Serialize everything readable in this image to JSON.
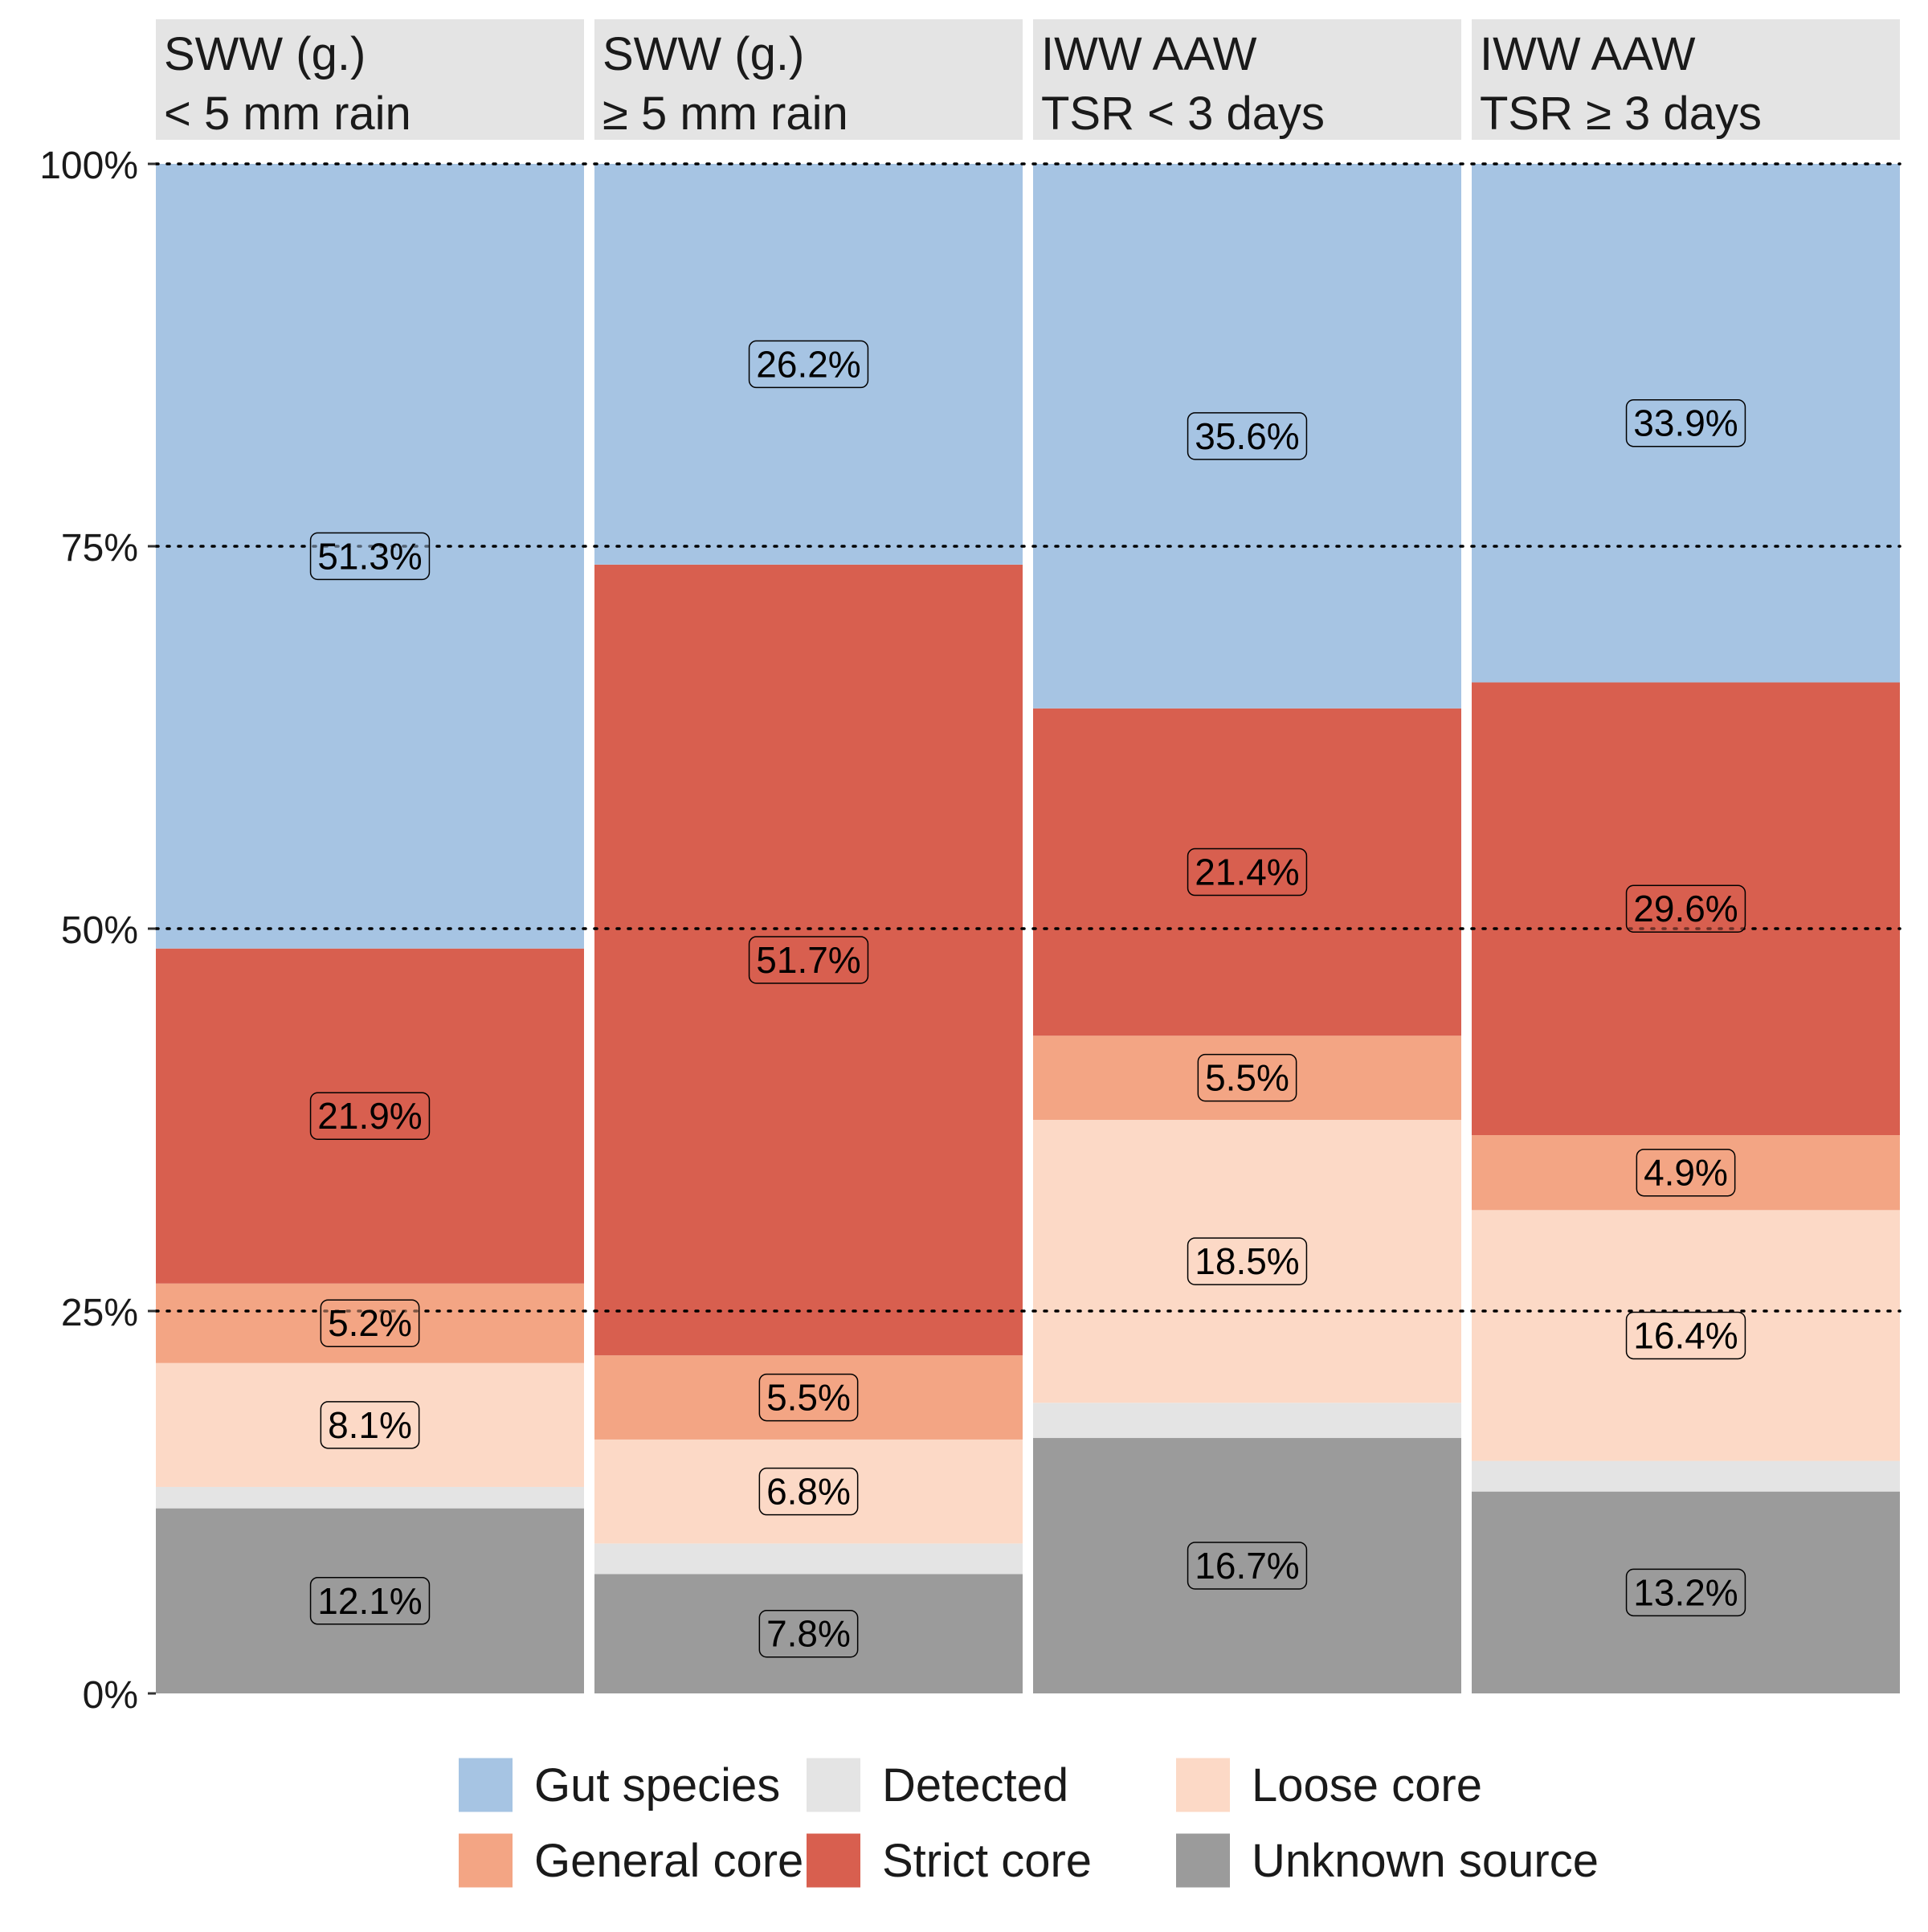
{
  "chart_data": {
    "type": "bar",
    "stacked": true,
    "facets": [
      {
        "strip_label": [
          "SWW (g.)",
          "< 5 mm rain"
        ],
        "segments": [
          {
            "series": "Unknown source",
            "value": 12.1,
            "label": "12.1%"
          },
          {
            "series": "Detected",
            "value": 1.4,
            "label": ""
          },
          {
            "series": "Loose core",
            "value": 8.1,
            "label": "8.1%"
          },
          {
            "series": "General core",
            "value": 5.2,
            "label": "5.2%"
          },
          {
            "series": "Strict core",
            "value": 21.9,
            "label": "21.9%"
          },
          {
            "series": "Gut species",
            "value": 51.3,
            "label": "51.3%"
          }
        ]
      },
      {
        "strip_label": [
          "SWW (g.)",
          "≥ 5 mm rain"
        ],
        "segments": [
          {
            "series": "Unknown source",
            "value": 7.8,
            "label": "7.8%"
          },
          {
            "series": "Detected",
            "value": 2.0,
            "label": ""
          },
          {
            "series": "Loose core",
            "value": 6.8,
            "label": "6.8%"
          },
          {
            "series": "General core",
            "value": 5.5,
            "label": "5.5%"
          },
          {
            "series": "Strict core",
            "value": 51.7,
            "label": "51.7%"
          },
          {
            "series": "Gut species",
            "value": 26.2,
            "label": "26.2%"
          }
        ]
      },
      {
        "strip_label": [
          "IWW AAW",
          "TSR < 3 days"
        ],
        "segments": [
          {
            "series": "Unknown source",
            "value": 16.7,
            "label": "16.7%"
          },
          {
            "series": "Detected",
            "value": 2.3,
            "label": ""
          },
          {
            "series": "Loose core",
            "value": 18.5,
            "label": "18.5%"
          },
          {
            "series": "General core",
            "value": 5.5,
            "label": "5.5%"
          },
          {
            "series": "Strict core",
            "value": 21.4,
            "label": "21.4%"
          },
          {
            "series": "Gut species",
            "value": 35.6,
            "label": "35.6%"
          }
        ]
      },
      {
        "strip_label": [
          "IWW AAW",
          "TSR ≥ 3 days"
        ],
        "segments": [
          {
            "series": "Unknown source",
            "value": 13.2,
            "label": "13.2%"
          },
          {
            "series": "Detected",
            "value": 2.0,
            "label": ""
          },
          {
            "series": "Loose core",
            "value": 16.4,
            "label": "16.4%"
          },
          {
            "series": "General core",
            "value": 4.9,
            "label": "4.9%"
          },
          {
            "series": "Strict core",
            "value": 29.6,
            "label": "29.6%"
          },
          {
            "series": "Gut species",
            "value": 33.9,
            "label": "33.9%"
          }
        ]
      }
    ],
    "ylim": [
      0,
      100
    ],
    "y_ticks": [
      0,
      25,
      50,
      75,
      100
    ],
    "y_tick_labels": [
      "0%",
      "25%",
      "50%",
      "75%",
      "100%"
    ],
    "reference_lines": [
      25,
      50,
      75,
      100
    ],
    "legend": {
      "position": "bottom",
      "items": [
        {
          "name": "Gut species",
          "color": "#a6c4e3"
        },
        {
          "name": "General core",
          "color": "#f3a584"
        },
        {
          "name": "Detected",
          "color": "#e4e4e4"
        },
        {
          "name": "Strict core",
          "color": "#d85f4f"
        },
        {
          "name": "Loose core",
          "color": "#fcd9c6"
        },
        {
          "name": "Unknown source",
          "color": "#9b9b9b"
        }
      ]
    },
    "colors": {
      "Gut species": "#a6c4e3",
      "Strict core": "#d85f4f",
      "General core": "#f3a584",
      "Loose core": "#fcd9c6",
      "Detected": "#e4e4e4",
      "Unknown source": "#9b9b9b",
      "strip_background": "#e4e4e4",
      "label_fill_alpha": 0.5
    }
  }
}
